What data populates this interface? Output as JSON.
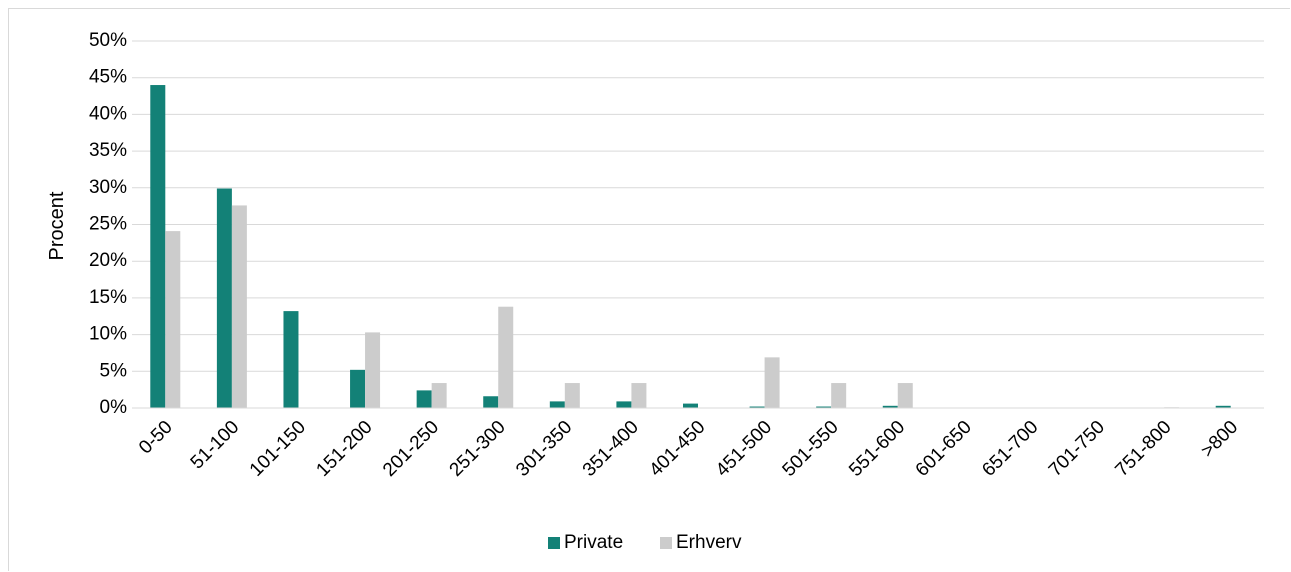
{
  "chart_data": {
    "type": "bar",
    "title": "",
    "xlabel": "",
    "ylabel": "Procent",
    "ylim": [
      0,
      50
    ],
    "y_ticks": [
      "0%",
      "5%",
      "10%",
      "15%",
      "20%",
      "25%",
      "30%",
      "35%",
      "40%",
      "45%",
      "50%"
    ],
    "grid": true,
    "legend_position": "bottom",
    "categories": [
      "0-50",
      "51-100",
      "101-150",
      "151-200",
      "201-250",
      "251-300",
      "301-350",
      "351-400",
      "401-450",
      "451-500",
      "501-550",
      "551-600",
      "601-650",
      "651-700",
      "701-750",
      "751-800",
      ">800"
    ],
    "series": [
      {
        "name": "Private",
        "color": "#138177",
        "values": [
          44.0,
          29.9,
          13.2,
          5.2,
          2.4,
          1.6,
          0.9,
          0.9,
          0.6,
          0.2,
          0.2,
          0.3,
          0,
          0,
          0,
          0,
          0.3
        ]
      },
      {
        "name": "Erhverv",
        "color": "#cccccc",
        "values": [
          24.1,
          27.6,
          0,
          10.3,
          3.4,
          13.8,
          3.4,
          3.4,
          0,
          6.9,
          3.4,
          3.4,
          0,
          0,
          0,
          0.1,
          0
        ]
      }
    ]
  }
}
